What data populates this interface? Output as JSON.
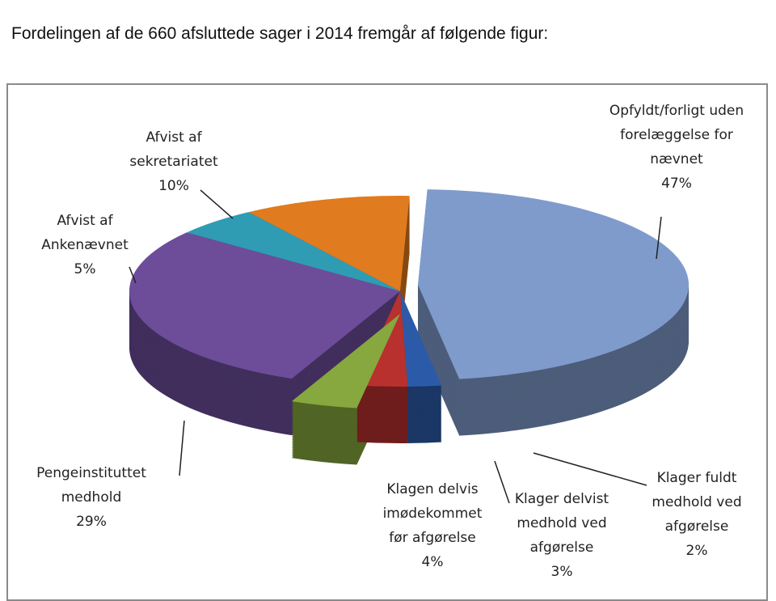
{
  "heading": "Fordelingen af de 660 afsluttede sager i 2014 fremgår af følgende figur:",
  "chart_data": {
    "type": "pie",
    "title": "",
    "slices": [
      {
        "label": "Opfyldt/forligt uden forelæggelse for nævnet",
        "value": 47,
        "pct": "47%",
        "color": "#7f9bcc"
      },
      {
        "label": "Klager fuldt medhold ved afgørelse",
        "value": 2,
        "pct": "2%",
        "color": "#2b5ba8"
      },
      {
        "label": "Klager delvist medhold ved afgørelse",
        "value": 3,
        "pct": "3%",
        "color": "#b8312e"
      },
      {
        "label": "Klagen delvis imødekommet før afgørelse",
        "value": 4,
        "pct": "4%",
        "color": "#86a83e"
      },
      {
        "label": "Pengeinstituttet medhold",
        "value": 29,
        "pct": "29%",
        "color": "#6d4d9a"
      },
      {
        "label": "Afvist af Ankenævnet",
        "value": 5,
        "pct": "5%",
        "color": "#2f9cb3"
      },
      {
        "label": "Afvist af sekretariatet",
        "value": 10,
        "pct": "10%",
        "color": "#e07b1f"
      }
    ]
  }
}
